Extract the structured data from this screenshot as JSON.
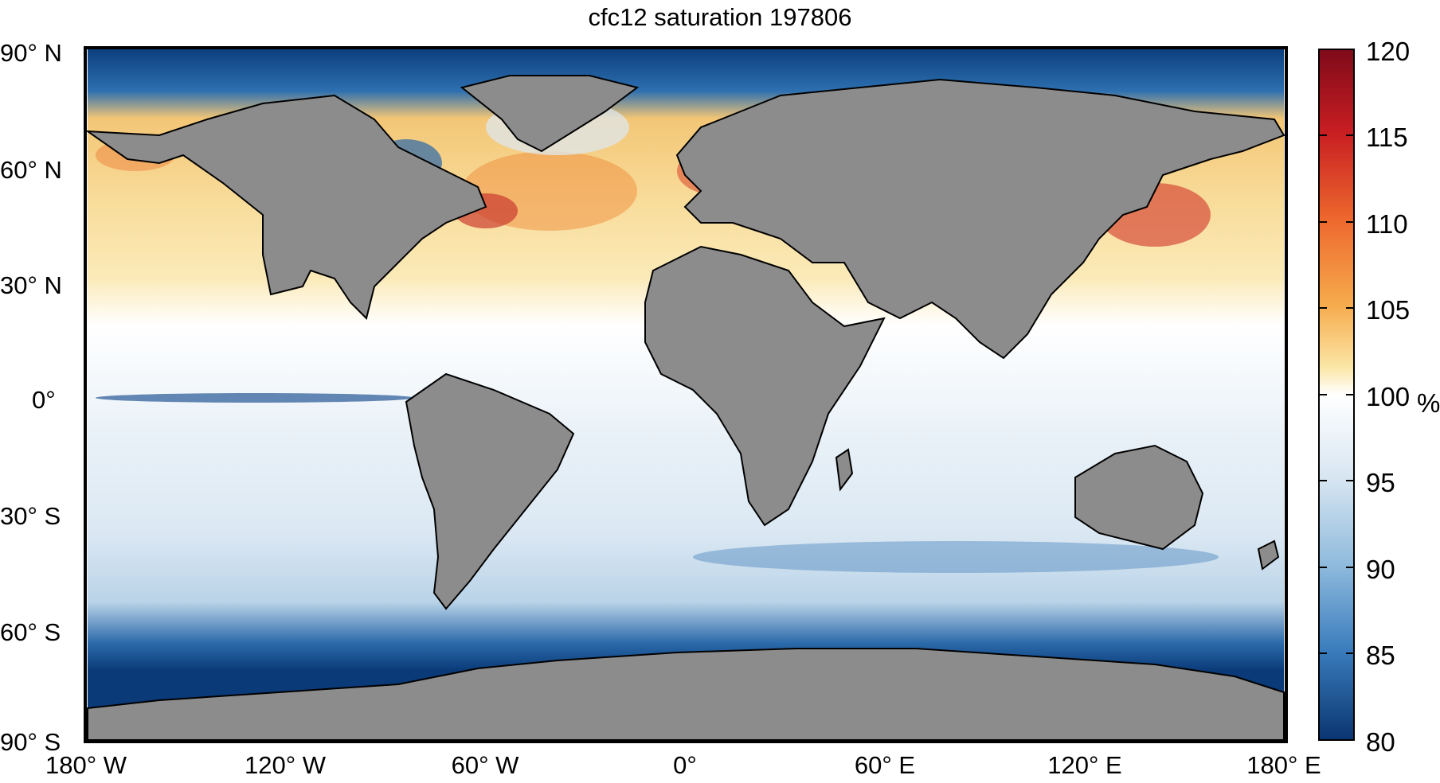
{
  "title": "cfc12 saturation 197806",
  "lat_ticks": [
    "90° N",
    "60° N",
    "30° N",
    "0°",
    "30° S",
    "60° S",
    "90° S"
  ],
  "lon_ticks": [
    "180° W",
    "120° W",
    "60° W",
    "0°",
    "60° E",
    "120° E",
    "180° E"
  ],
  "colorbar": {
    "ticks": [
      "120",
      "115",
      "110",
      "105",
      "100",
      "95",
      "90",
      "85",
      "80"
    ],
    "unit": "%",
    "range": [
      80,
      120
    ]
  },
  "colors": {
    "land": "#8c8c8c",
    "high": "#7f0a1a",
    "mid_high": "#f7e4a0",
    "neutral": "#ffffff",
    "mid_low": "#9dc3e0",
    "low": "#0a3a78"
  }
}
